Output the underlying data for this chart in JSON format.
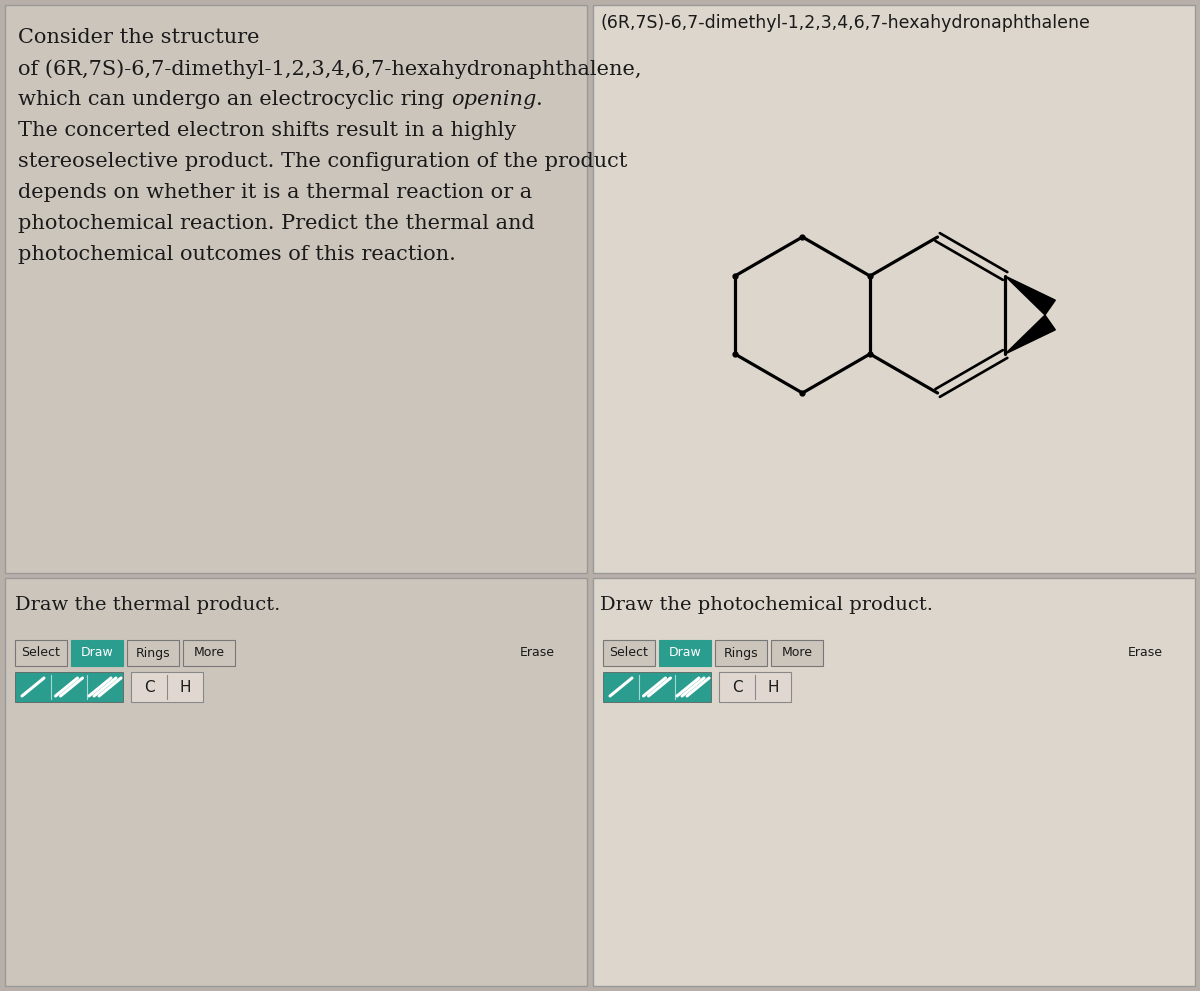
{
  "bg_color": "#b8b0a8",
  "left_top_bg": "#c8c0b8",
  "right_top_bg": "#ddd8d0",
  "bottom_left_bg": "#c8c0b8",
  "bottom_right_bg": "#ddd8d0",
  "question_text_lines": [
    "Consider the structure",
    "of (6R,7S)-6,7-dimethyl-1,2,3,4,6,7-hexahydronaphthalene,",
    "which can undergo an electrocyclic ring opening.",
    "The concerted electron shifts result in a highly",
    "stereoselective product. The configuration of the product",
    "depends on whether it is a thermal reaction or a",
    "photochemical reaction. Predict the thermal and",
    "photochemical outcomes of this reaction."
  ],
  "compound_title": "(6R,7S)-6,7-dimethyl-1,2,3,4,6,7-hexahydronaphthalene",
  "thermal_label": "Draw the thermal product.",
  "photo_label": "Draw the photochemical product.",
  "toolbar_color": "#2a9d8f",
  "text_color": "#1a1a1a",
  "font_size_text": 15,
  "font_size_title": 13
}
